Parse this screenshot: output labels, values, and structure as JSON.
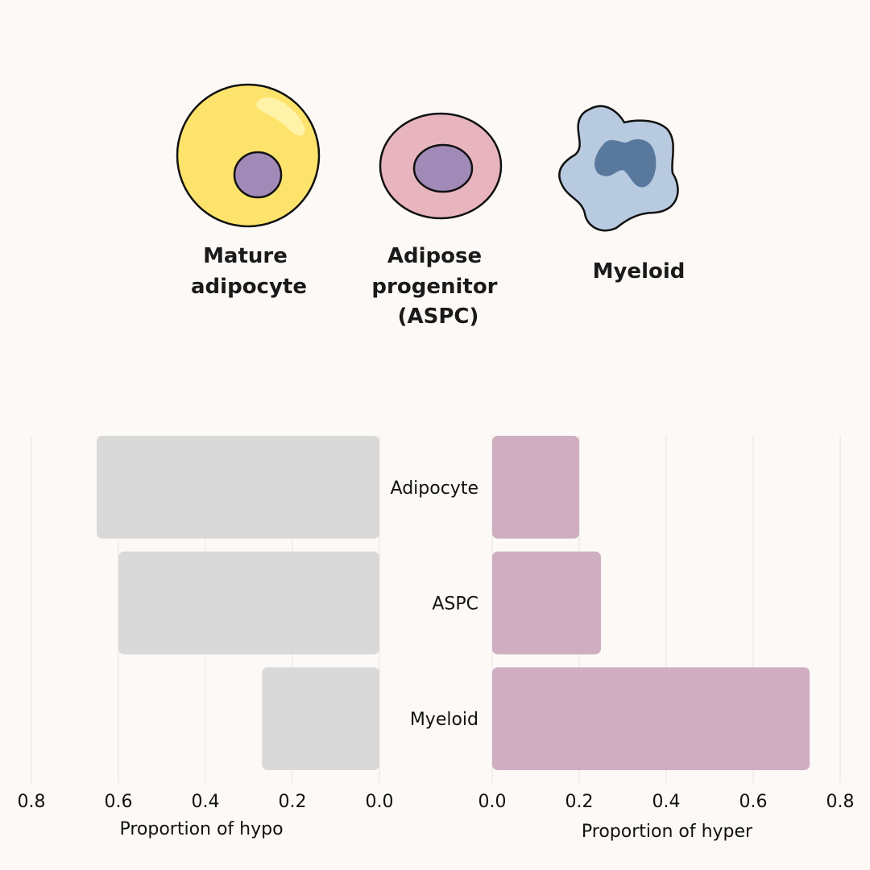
{
  "cells": [
    {
      "id": "mature-adipocyte",
      "label_lines": [
        "Mature",
        "adipocyte"
      ],
      "fill": "#fde36b",
      "nucleus": "#a28ab8"
    },
    {
      "id": "aspc",
      "label_lines": [
        "Adipose",
        "progenitor",
        "(ASPC)"
      ],
      "fill": "#e8b5bf",
      "nucleus": "#a28ab8"
    },
    {
      "id": "myeloid",
      "label_lines": [
        "Myeloid"
      ],
      "fill": "#b8cae0",
      "nucleus": "#58789c"
    }
  ],
  "chart_data": [
    {
      "type": "bar",
      "orientation": "horizontal",
      "direction": "reversed",
      "categories": [
        "Adipocyte",
        "ASPC",
        "Myeloid"
      ],
      "values": [
        0.65,
        0.6,
        0.27
      ],
      "xlim": [
        0,
        0.8
      ],
      "xticks": [
        0.8,
        0.6,
        0.4,
        0.2,
        0.0
      ],
      "xlabel": "Proportion of hypo",
      "color": "#d9d9d9",
      "grid": true
    },
    {
      "type": "bar",
      "orientation": "horizontal",
      "categories": [
        "Adipocyte",
        "ASPC",
        "Myeloid"
      ],
      "values": [
        0.2,
        0.25,
        0.73
      ],
      "xlim": [
        0,
        0.8
      ],
      "xticks": [
        0.0,
        0.2,
        0.4,
        0.6,
        0.8
      ],
      "xlabel": "Proportion of hyper",
      "color": "#cfaec2",
      "grid": true
    }
  ]
}
